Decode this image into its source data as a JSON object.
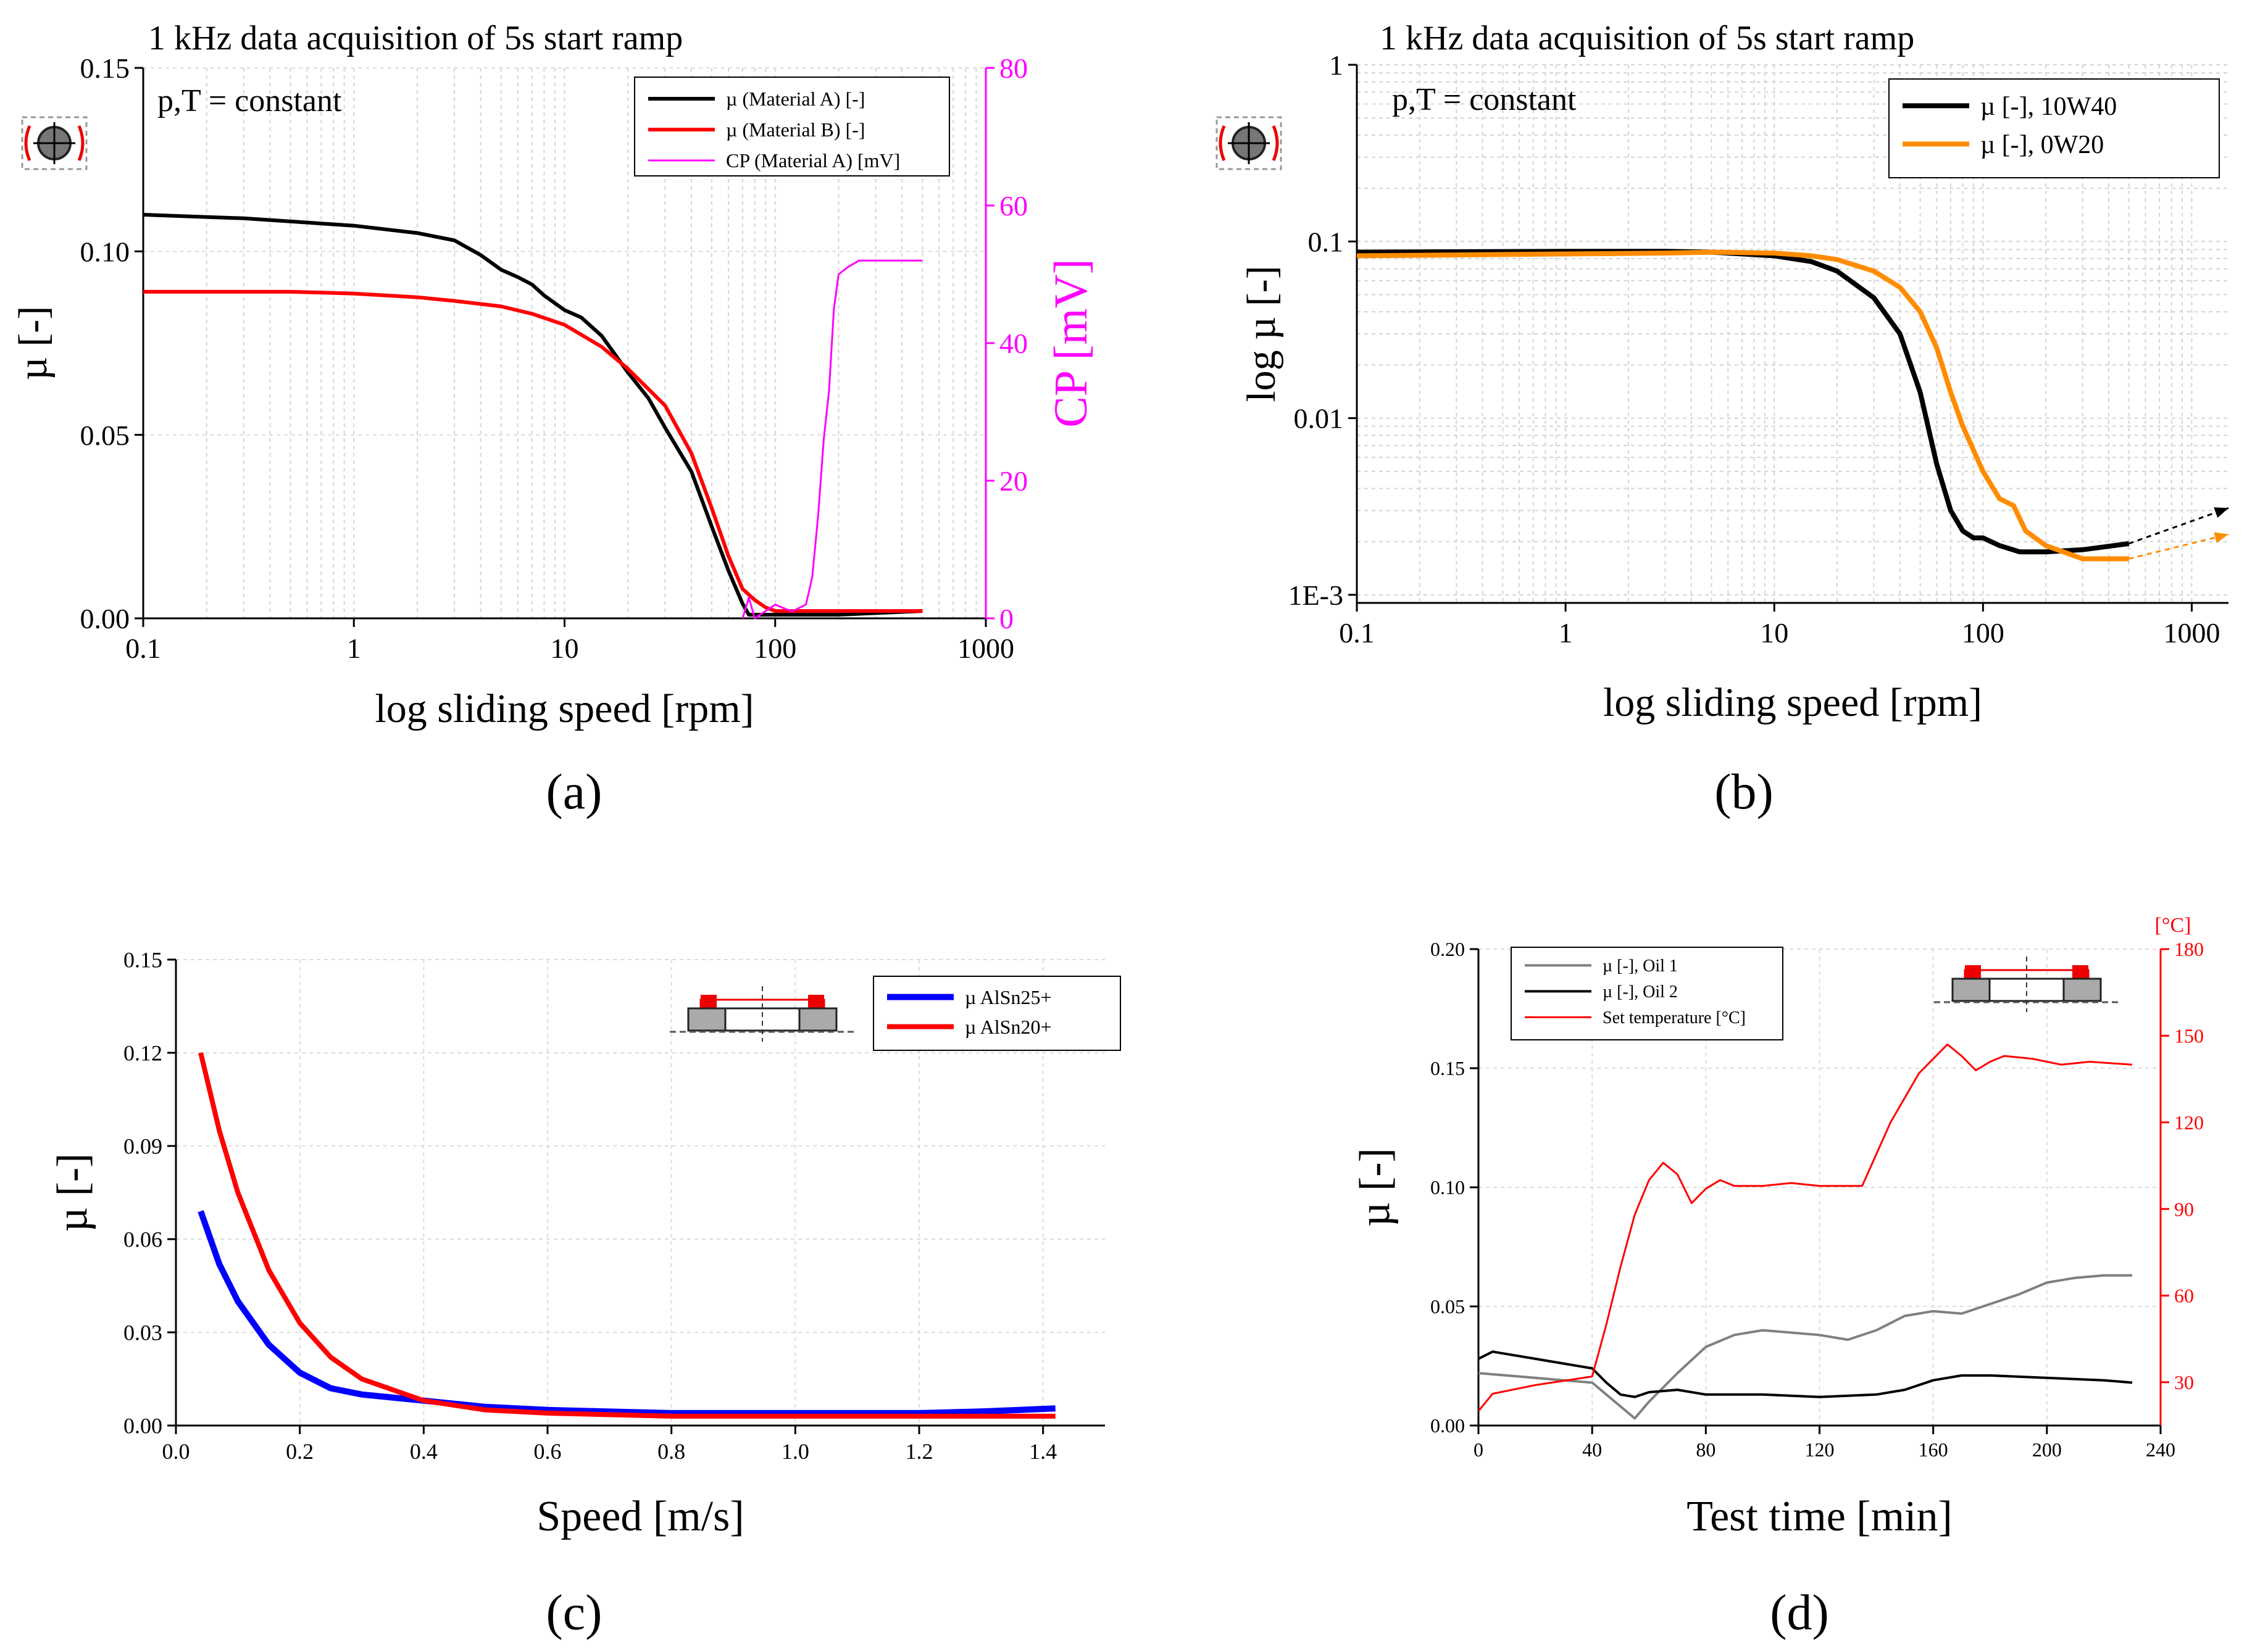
{
  "figure": {
    "panel_labels": [
      "(a)",
      "(b)",
      "(c)",
      "(d)"
    ]
  },
  "chart_data": [
    {
      "panel": "(a)",
      "type": "line",
      "title": "1 kHz data acquisition of 5s start ramp",
      "annotation": "p,T = constant",
      "xlabel": "log sliding speed [rpm]",
      "ylabel": "µ [-]",
      "y2label": "CP [mV]",
      "xscale": "log",
      "xlim": [
        0.1,
        1000
      ],
      "ylim": [
        0,
        0.15
      ],
      "y2lim": [
        0,
        80
      ],
      "xticks": [
        "0.1",
        "1",
        "10",
        "100",
        "1000"
      ],
      "yticks": [
        "0.00",
        "0.05",
        "0.10",
        "0.15"
      ],
      "y2ticks": [
        "0",
        "20",
        "40",
        "60",
        "80"
      ],
      "legend_position": "top-right",
      "colors": {
        "black": "#000000",
        "red": "#ff0000",
        "magenta": "#ff00ff"
      },
      "series": [
        {
          "name": "µ (Material A) [-]",
          "axis": "left",
          "x": [
            0.1,
            0.3,
            1,
            2,
            3,
            4,
            5,
            6,
            7,
            8,
            10,
            12,
            15,
            20,
            25,
            30,
            40,
            50,
            60,
            70,
            75,
            100,
            200,
            500
          ],
          "y": [
            0.11,
            0.109,
            0.107,
            0.105,
            0.103,
            0.099,
            0.095,
            0.093,
            0.091,
            0.088,
            0.084,
            0.082,
            0.077,
            0.067,
            0.06,
            0.052,
            0.04,
            0.025,
            0.013,
            0.004,
            0.001,
            0.001,
            0.001,
            0.002
          ]
        },
        {
          "name": "µ (Material B) [-]",
          "axis": "left",
          "x": [
            0.1,
            0.5,
            1,
            2,
            3,
            5,
            7,
            10,
            15,
            20,
            30,
            40,
            50,
            60,
            70,
            80,
            90,
            100,
            200,
            500
          ],
          "y": [
            0.089,
            0.089,
            0.0885,
            0.0875,
            0.0865,
            0.085,
            0.083,
            0.08,
            0.074,
            0.068,
            0.058,
            0.045,
            0.03,
            0.017,
            0.008,
            0.005,
            0.003,
            0.002,
            0.002,
            0.002
          ]
        },
        {
          "name": "CP (Material A) [mV]",
          "axis": "right",
          "x": [
            70,
            75,
            80,
            100,
            120,
            140,
            150,
            160,
            170,
            180,
            190,
            200,
            220,
            250,
            300,
            400,
            500
          ],
          "y": [
            0,
            3,
            0,
            2,
            1,
            2,
            6,
            15,
            26,
            33,
            45,
            50,
            51,
            52,
            52,
            52,
            52
          ]
        }
      ]
    },
    {
      "panel": "(b)",
      "type": "line",
      "title": "1 kHz data acquisition of 5s start ramp",
      "annotation": "p,T = constant",
      "xlabel": "log sliding speed [rpm]",
      "ylabel": "log µ [-]",
      "xscale": "log",
      "yscale": "log",
      "xlim": [
        0.1,
        1500
      ],
      "ylim": [
        0.0009,
        1
      ],
      "xticks": [
        "0.1",
        "1",
        "10",
        "100",
        "1000"
      ],
      "yticks": [
        "1E-3",
        "0.01",
        "0.1",
        "1"
      ],
      "legend_position": "top-right",
      "colors": {
        "black": "#000000",
        "orange": "#ff8c00"
      },
      "series": [
        {
          "name": "µ [-], 10W40",
          "x": [
            0.1,
            1,
            3,
            5,
            10,
            15,
            20,
            30,
            40,
            50,
            60,
            70,
            80,
            90,
            100,
            120,
            150,
            200,
            300,
            500
          ],
          "y": [
            0.087,
            0.088,
            0.088,
            0.087,
            0.083,
            0.077,
            0.068,
            0.048,
            0.03,
            0.014,
            0.0055,
            0.003,
            0.0023,
            0.0021,
            0.0021,
            0.0019,
            0.00175,
            0.00175,
            0.0018,
            0.00195
          ]
        },
        {
          "name": "µ [-], 0W20",
          "x": [
            0.1,
            1,
            3,
            5,
            10,
            15,
            20,
            30,
            40,
            50,
            60,
            70,
            80,
            100,
            120,
            140,
            160,
            200,
            300,
            500
          ],
          "y": [
            0.083,
            0.085,
            0.086,
            0.087,
            0.086,
            0.083,
            0.079,
            0.068,
            0.055,
            0.04,
            0.025,
            0.014,
            0.009,
            0.005,
            0.0035,
            0.0032,
            0.0023,
            0.0019,
            0.0016,
            0.0016
          ]
        }
      ],
      "extrapolation": [
        {
          "series": "µ [-], 10W40",
          "x": [
            500,
            1500
          ],
          "y": [
            0.00195,
            0.0031
          ]
        },
        {
          "series": "µ [-], 0W20",
          "x": [
            500,
            1500
          ],
          "y": [
            0.0016,
            0.0022
          ]
        }
      ]
    },
    {
      "panel": "(c)",
      "type": "line",
      "title": "",
      "xlabel": "Speed [m/s]",
      "ylabel": "µ [-]",
      "xlim": [
        0,
        1.5
      ],
      "ylim": [
        0,
        0.15
      ],
      "xticks": [
        "0.0",
        "0.2",
        "0.4",
        "0.6",
        "0.8",
        "1.0",
        "1.2",
        "1.4"
      ],
      "yticks": [
        "0.00",
        "0.03",
        "0.06",
        "0.09",
        "0.12",
        "0.15"
      ],
      "legend_position": "top-right",
      "colors": {
        "blue": "#0000ff",
        "red": "#ff0000"
      },
      "series": [
        {
          "name": "µ AlSn25+",
          "x": [
            0.04,
            0.07,
            0.1,
            0.15,
            0.2,
            0.25,
            0.3,
            0.4,
            0.5,
            0.6,
            0.8,
            1.0,
            1.2,
            1.3,
            1.42
          ],
          "y": [
            0.069,
            0.052,
            0.04,
            0.026,
            0.017,
            0.012,
            0.01,
            0.008,
            0.006,
            0.005,
            0.004,
            0.004,
            0.004,
            0.0045,
            0.0055
          ]
        },
        {
          "name": "µ AlSn20+",
          "x": [
            0.04,
            0.07,
            0.1,
            0.15,
            0.2,
            0.25,
            0.3,
            0.4,
            0.5,
            0.6,
            0.8,
            1.0,
            1.2,
            1.42
          ],
          "y": [
            0.12,
            0.095,
            0.075,
            0.05,
            0.033,
            0.022,
            0.015,
            0.008,
            0.005,
            0.004,
            0.003,
            0.003,
            0.003,
            0.003
          ]
        }
      ]
    },
    {
      "panel": "(d)",
      "type": "line",
      "title": "",
      "xlabel": "Test time [min]",
      "ylabel": "µ [-]",
      "y2label": "[°C]",
      "xlim": [
        0,
        240
      ],
      "ylim": [
        0,
        0.2
      ],
      "y2lim": [
        15,
        180
      ],
      "xticks": [
        "0",
        "40",
        "80",
        "120",
        "160",
        "200",
        "240"
      ],
      "yticks": [
        "0.00",
        "0.05",
        "0.10",
        "0.15",
        "0.20"
      ],
      "y2ticks": [
        "30",
        "60",
        "90",
        "120",
        "150",
        "180"
      ],
      "legend_position": "top-left",
      "colors": {
        "gray": "#808080",
        "black": "#000000",
        "red": "#ff0000"
      },
      "series": [
        {
          "name": "µ [-], Oil 1",
          "x": [
            0,
            10,
            20,
            30,
            40,
            50,
            55,
            60,
            70,
            80,
            90,
            100,
            120,
            130,
            140,
            150,
            160,
            170,
            180,
            190,
            200,
            210,
            220,
            230
          ],
          "y": [
            0.022,
            0.021,
            0.02,
            0.019,
            0.018,
            0.008,
            0.003,
            0.01,
            0.022,
            0.033,
            0.038,
            0.04,
            0.038,
            0.036,
            0.04,
            0.046,
            0.048,
            0.047,
            0.051,
            0.055,
            0.06,
            0.062,
            0.063,
            0.063
          ]
        },
        {
          "name": "µ [-], Oil 2",
          "x": [
            0,
            5,
            10,
            20,
            30,
            40,
            45,
            50,
            55,
            60,
            70,
            80,
            100,
            120,
            140,
            150,
            160,
            170,
            180,
            200,
            220,
            230
          ],
          "y": [
            0.028,
            0.031,
            0.03,
            0.028,
            0.026,
            0.024,
            0.018,
            0.013,
            0.012,
            0.014,
            0.015,
            0.013,
            0.013,
            0.012,
            0.013,
            0.015,
            0.019,
            0.021,
            0.021,
            0.02,
            0.019,
            0.018
          ]
        },
        {
          "name": "Set temperature [°C]",
          "axis": "right",
          "x": [
            0,
            5,
            20,
            40,
            45,
            50,
            55,
            60,
            65,
            70,
            75,
            80,
            85,
            90,
            100,
            110,
            120,
            135,
            145,
            155,
            165,
            170,
            175,
            180,
            185,
            195,
            205,
            215,
            230
          ],
          "y": [
            20,
            26,
            29,
            32,
            50,
            70,
            88,
            100,
            106,
            102,
            92,
            97,
            100,
            98,
            98,
            99,
            98,
            98,
            120,
            137,
            147,
            143,
            138,
            141,
            143,
            142,
            140,
            141,
            140
          ]
        }
      ]
    }
  ]
}
